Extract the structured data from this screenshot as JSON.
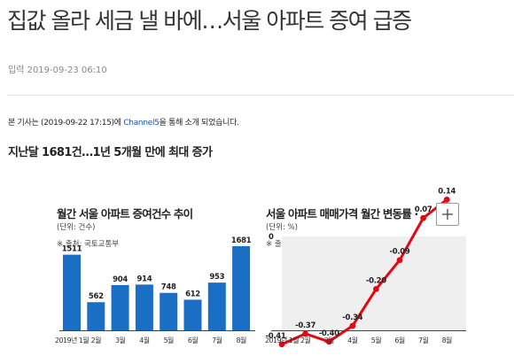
{
  "article": {
    "headline": "집값 올라 세금 낼 바에…서울 아파트 증여 급증",
    "date": "입력 2019-09-23 06:10",
    "source_prefix": "본 기사는 (2019-09-22 17:15)에 ",
    "source_link": "Channel5",
    "source_suffix": "을 통해 소개 되었습니다.",
    "subheadline": "지난달 1681건…1년 5개월 만에 최대 증가"
  },
  "charts": {
    "left": {
      "title": "월간 서울 아파트 증여건수 추이",
      "unit": "(단위: 건수)",
      "note": "※ 출처: 국토교통부"
    },
    "right": {
      "title": "서울 아파트 매매가격 월간 변동률 ·",
      "unit": "(단위: %)",
      "note": "※ 출처: 한국감정원"
    }
  },
  "toolbar": {
    "zoom_icon": "plus-icon"
  },
  "colors": {
    "bar": "#1a6fc4",
    "line": "#e30613",
    "shade": "#efefef",
    "link": "#1a56a6"
  },
  "chart_data": [
    {
      "type": "bar",
      "title": "월간 서울 아파트 증여건수 추이",
      "ylabel": "(단위: 건수)",
      "categories": [
        "2019년 1월",
        "2월",
        "3월",
        "4월",
        "5월",
        "6월",
        "7월",
        "8월"
      ],
      "values": [
        1511,
        562,
        904,
        914,
        748,
        612,
        953,
        1681
      ],
      "ylim": [
        0,
        1681
      ],
      "grid": false,
      "legend": "none"
    },
    {
      "type": "line",
      "title": "서울 아파트 매매가격 월간 변동률",
      "ylabel": "(단위: %)",
      "categories": [
        "2019년 1월",
        "2월",
        "3월",
        "4월",
        "5월",
        "6월",
        "7월",
        "8월"
      ],
      "values": [
        -0.41,
        -0.37,
        -0.4,
        -0.34,
        -0.2,
        -0.09,
        0.07,
        0.14
      ],
      "y_tick": 0,
      "ylim": [
        -0.41,
        0.14
      ],
      "grid": false,
      "legend": "none"
    }
  ]
}
